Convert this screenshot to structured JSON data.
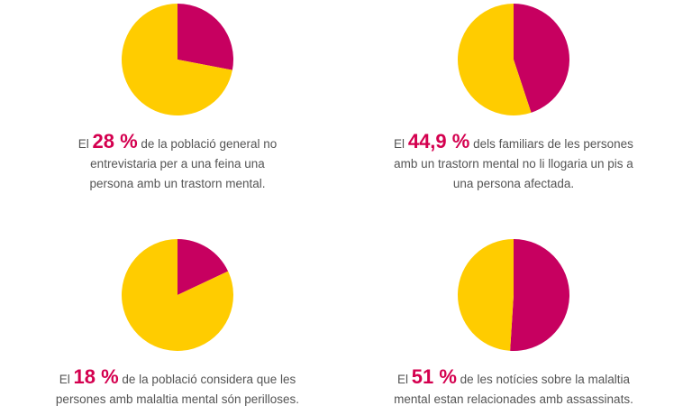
{
  "colors": {
    "highlight": "#c70060",
    "rest": "#ffcc00",
    "number_text": "#d4004f",
    "body_text": "#555555"
  },
  "chart_data": [
    {
      "type": "pie",
      "values": [
        28,
        72
      ],
      "prefix": "El",
      "number": "28 %",
      "text": "de la població general no entrevistaria per a una feina una persona amb un trastorn mental."
    },
    {
      "type": "pie",
      "values": [
        44.9,
        55.1
      ],
      "prefix": "El",
      "number": "44,9 %",
      "text": "dels familiars de les persones amb un trastorn mental no li llogaria un pis a una persona afectada."
    },
    {
      "type": "pie",
      "values": [
        18,
        82
      ],
      "prefix": "El",
      "number": "18 %",
      "text": "de la població considera que les persones amb malaltia mental són perilloses."
    },
    {
      "type": "pie",
      "values": [
        51,
        49
      ],
      "prefix": "El",
      "number": "51 %",
      "text": "de les notícies sobre la malaltia mental estan relacionades amb assassinats."
    }
  ]
}
